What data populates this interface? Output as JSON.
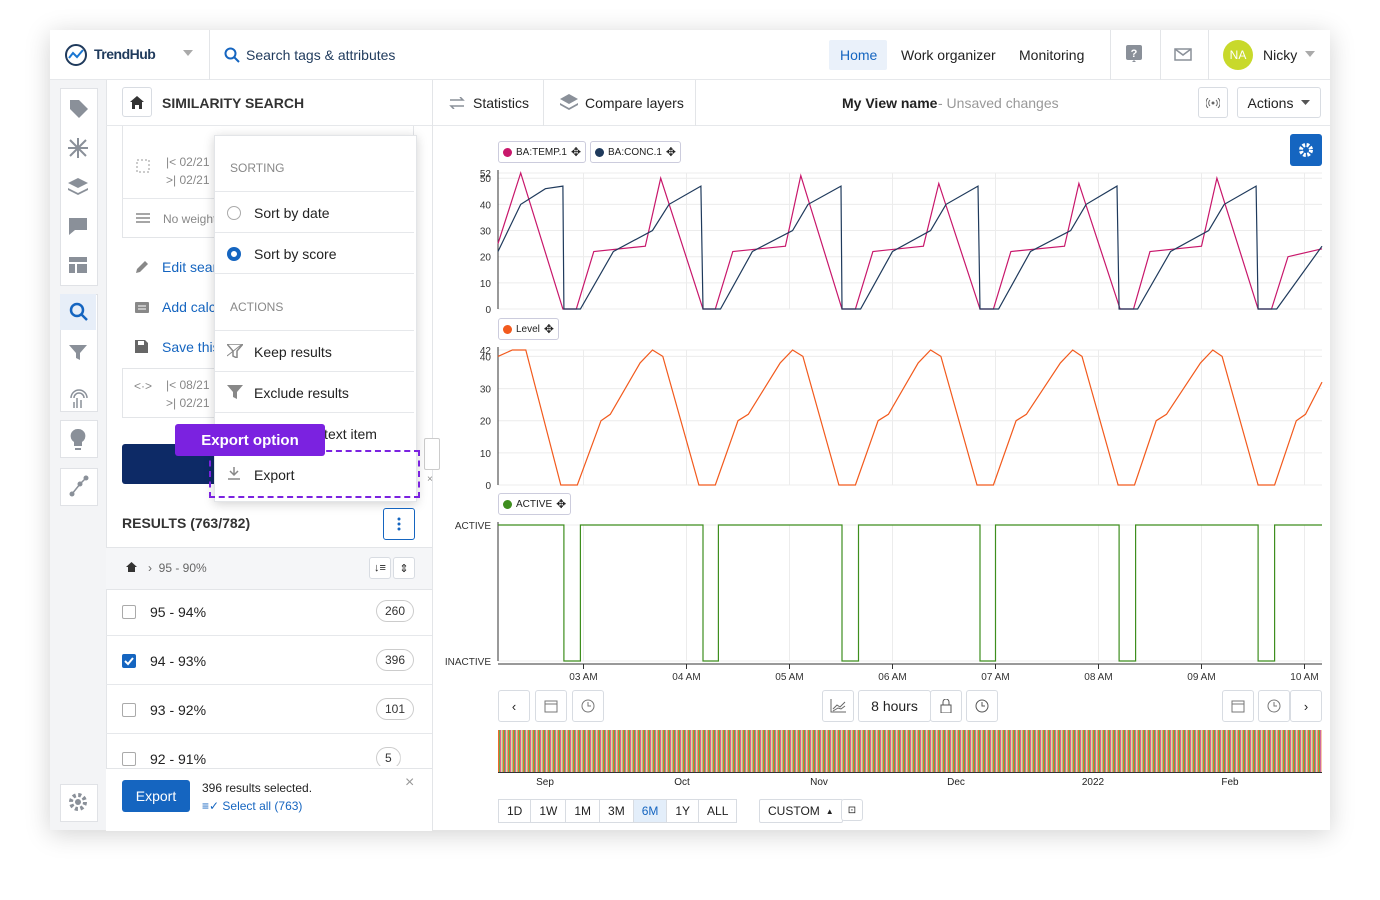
{
  "header": {
    "logo": "TrendHub",
    "search": "Search tags & attributes",
    "nav": [
      "Home",
      "Work organizer",
      "Monitoring"
    ],
    "avatar": "NA",
    "user": "Nicky"
  },
  "toolbar": {
    "panel_title": "SIMILARITY SEARCH",
    "statistics": "Statistics",
    "compare": "Compare layers",
    "view_name": "My View name",
    "view_status": "- Unsaved changes",
    "actions": "Actions"
  },
  "search_panel": {
    "date_from": "02/21",
    "date_to": "02/21",
    "weights": "No weights",
    "links": [
      "Edit search",
      "Add calculation",
      "Save this search"
    ],
    "range_from": "08/21",
    "range_to": "02/21"
  },
  "menu": {
    "sorting_header": "SORTING",
    "sort_options": [
      {
        "label": "Sort by date",
        "selected": false
      },
      {
        "label": "Sort by score",
        "selected": true
      }
    ],
    "actions_header": "ACTIONS",
    "items": [
      "Keep results",
      "Exclude results",
      "Add as context item",
      "Export"
    ],
    "callout": "Export option"
  },
  "results": {
    "title": "RESULTS (763/782)",
    "breadcrumb": "95 - 90%",
    "rows": [
      {
        "label": "95 - 94%",
        "count": 260,
        "checked": false
      },
      {
        "label": "94 - 93%",
        "count": 396,
        "checked": true
      },
      {
        "label": "93 - 92%",
        "count": 101,
        "checked": false
      },
      {
        "label": "92 - 91%",
        "count": 5,
        "checked": false
      }
    ],
    "export": "Export",
    "selected": "396 results selected.",
    "select_all": "Select all (763)"
  },
  "chart_data": [
    {
      "type": "line",
      "xlim": [
        2.17,
        10.17
      ],
      "xticks": [
        3,
        4,
        5,
        6,
        7,
        8,
        9,
        10
      ],
      "ylim": [
        0,
        52
      ],
      "yticks": [
        0,
        10,
        20,
        30,
        40,
        50,
        52
      ],
      "grid": true,
      "series": [
        {
          "name": "BA:TEMP.1",
          "color": "#c8176b",
          "x": [
            2.17,
            2.39,
            2.8,
            2.93,
            3.1,
            3.6,
            3.75,
            4.16,
            4.28,
            4.45,
            4.96,
            5.11,
            5.51,
            5.64,
            5.81,
            6.3,
            6.45,
            6.85,
            6.98,
            7.15,
            7.67,
            7.81,
            8.21,
            8.34,
            8.5,
            9.0,
            9.15,
            9.55,
            9.68,
            9.84,
            10.17
          ],
          "values": [
            25,
            52,
            0,
            0,
            22,
            24,
            50,
            0,
            0,
            22,
            24,
            51,
            0,
            0,
            22,
            24,
            48,
            0,
            0,
            22,
            24,
            48,
            0,
            0,
            22,
            24,
            50,
            0,
            0,
            20,
            23
          ]
        },
        {
          "name": "BA:CONC.1",
          "color": "#1f3a5c",
          "x": [
            2.17,
            2.39,
            2.63,
            2.8,
            2.81,
            2.97,
            3.29,
            3.67,
            3.83,
            4.14,
            4.16,
            4.33,
            4.64,
            5.03,
            5.18,
            5.5,
            5.51,
            5.69,
            6.0,
            6.37,
            6.52,
            6.83,
            6.85,
            7.03,
            7.34,
            7.73,
            7.88,
            8.18,
            8.2,
            8.38,
            8.7,
            9.07,
            9.22,
            9.53,
            9.55,
            9.73,
            10.17
          ],
          "values": [
            22,
            40,
            46,
            47,
            0,
            0,
            22,
            30,
            40,
            47,
            0,
            0,
            22,
            30,
            40,
            47,
            0,
            0,
            22,
            30,
            40,
            47,
            0,
            0,
            22,
            30,
            40,
            47,
            0,
            0,
            22,
            30,
            40,
            47,
            0,
            0,
            24
          ]
        }
      ]
    },
    {
      "type": "line",
      "xlim": [
        2.17,
        10.17
      ],
      "xticks": [
        3,
        4,
        5,
        6,
        7,
        8,
        9,
        10
      ],
      "ylim": [
        0,
        42
      ],
      "yticks": [
        0,
        10,
        20,
        30,
        40,
        42
      ],
      "grid": true,
      "series": [
        {
          "name": "Level",
          "color": "#f25a1d",
          "x": [
            2.17,
            2.31,
            2.44,
            2.78,
            2.94,
            3.17,
            3.26,
            3.55,
            3.67,
            3.77,
            4.12,
            4.28,
            4.5,
            4.6,
            4.91,
            5.03,
            5.13,
            5.48,
            5.64,
            5.86,
            5.96,
            6.25,
            6.37,
            6.47,
            6.82,
            6.98,
            7.2,
            7.3,
            7.63,
            7.75,
            7.84,
            8.19,
            8.35,
            8.56,
            8.66,
            8.99,
            9.11,
            9.2,
            9.55,
            9.71,
            9.92,
            10.01,
            10.17
          ],
          "values": [
            40,
            42,
            42,
            0,
            0,
            20,
            22,
            38,
            42,
            40,
            0,
            0,
            20,
            22,
            38,
            42,
            40,
            0,
            0,
            20,
            22,
            38,
            42,
            40,
            0,
            0,
            20,
            22,
            38,
            42,
            40,
            0,
            0,
            20,
            22,
            38,
            42,
            40,
            0,
            0,
            20,
            22,
            32
          ]
        }
      ]
    },
    {
      "type": "step",
      "xlim": [
        2.17,
        10.17
      ],
      "xticks": [
        {
          "value": 3,
          "label": "03 AM"
        },
        {
          "value": 4,
          "label": "04 AM"
        },
        {
          "value": 5,
          "label": "05 AM"
        },
        {
          "value": 6,
          "label": "06 AM"
        },
        {
          "value": 7,
          "label": "07 AM"
        },
        {
          "value": 8,
          "label": "08 AM"
        },
        {
          "value": 9,
          "label": "09 AM"
        },
        {
          "value": 10,
          "label": "10 AM"
        }
      ],
      "ylim": [
        0,
        1
      ],
      "yticks": [
        {
          "value": 1,
          "label": "ACTIVE"
        },
        {
          "value": 0,
          "label": "INACTIVE"
        }
      ],
      "grid": true,
      "series": [
        {
          "name": "ACTIVE",
          "color": "#3e8e1e",
          "x": [
            2.17,
            2.81,
            2.81,
            2.97,
            2.97,
            4.16,
            4.16,
            4.31,
            4.31,
            5.51,
            5.51,
            5.67,
            5.67,
            6.85,
            6.85,
            7.0,
            7.0,
            8.2,
            8.2,
            8.36,
            8.36,
            9.55,
            9.55,
            9.71,
            9.71,
            10.17
          ],
          "values": [
            1,
            1,
            0,
            0,
            1,
            1,
            0,
            0,
            1,
            1,
            0,
            0,
            1,
            1,
            0,
            0,
            1,
            1,
            0,
            0,
            1,
            1,
            0,
            0,
            1,
            1
          ]
        }
      ]
    }
  ],
  "time_controls": {
    "window": "8 hours",
    "ranges": [
      {
        "label": "1D",
        "active": false
      },
      {
        "label": "1W",
        "active": false
      },
      {
        "label": "1M",
        "active": false
      },
      {
        "label": "3M",
        "active": false
      },
      {
        "label": "6M",
        "active": true
      },
      {
        "label": "1Y",
        "active": false
      },
      {
        "label": "ALL",
        "active": false
      }
    ],
    "custom": "CUSTOM"
  },
  "navigator": {
    "labels": [
      "Sep",
      "Oct",
      "Nov",
      "Dec",
      "2022",
      "Feb"
    ]
  }
}
